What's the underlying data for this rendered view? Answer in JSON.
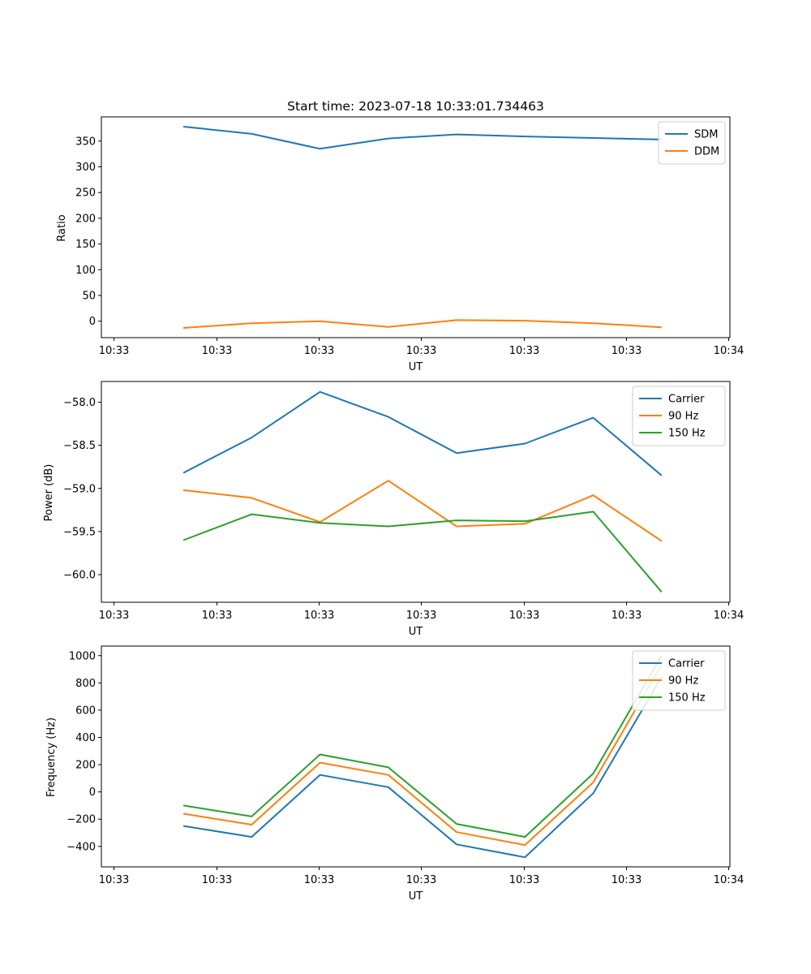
{
  "chart_data": [
    {
      "type": "line",
      "title": "Start time: 2023-07-18 10:33:01.734463",
      "xlabel": "UT",
      "ylabel": "Ratio",
      "x_tick_labels": [
        "10:33",
        "10:33",
        "10:33",
        "10:33",
        "10:33",
        "10:33",
        "10:34"
      ],
      "y_ticks": [
        0,
        50,
        100,
        150,
        200,
        250,
        300,
        350
      ],
      "ylim": [
        -32,
        397
      ],
      "x": [
        1,
        2,
        3,
        4,
        5,
        6,
        7,
        8
      ],
      "xlim": [
        -0.2,
        9.0
      ],
      "legend_position": "upper-right",
      "series": [
        {
          "name": "SDM",
          "color": "#1f77b4",
          "values": [
            378,
            364,
            335,
            355,
            363,
            359,
            356,
            353
          ]
        },
        {
          "name": "DDM",
          "color": "#ff7f0e",
          "values": [
            -13,
            -4,
            0,
            -11,
            2,
            1,
            -4,
            -12
          ]
        }
      ]
    },
    {
      "type": "line",
      "title": "",
      "xlabel": "UT",
      "ylabel": "Power (dB)",
      "x_tick_labels": [
        "10:33",
        "10:33",
        "10:33",
        "10:33",
        "10:33",
        "10:33",
        "10:34"
      ],
      "y_ticks": [
        -58.0,
        -58.5,
        -59.0,
        -59.5,
        -60.0
      ],
      "y_tick_labels": [
        "−58.0",
        "−58.5",
        "−59.0",
        "−59.5",
        "−60.0"
      ],
      "ylim": [
        -60.32,
        -57.76
      ],
      "x": [
        1,
        2,
        3,
        4,
        5,
        6,
        7,
        8
      ],
      "xlim": [
        -0.2,
        9.0
      ],
      "legend_position": "upper-right",
      "series": [
        {
          "name": "Carrier",
          "color": "#1f77b4",
          "values": [
            -58.82,
            -58.41,
            -57.88,
            -58.17,
            -58.59,
            -58.48,
            -58.18,
            -58.85
          ]
        },
        {
          "name": "90 Hz",
          "color": "#ff7f0e",
          "values": [
            -59.02,
            -59.11,
            -59.39,
            -58.91,
            -59.44,
            -59.41,
            -59.08,
            -59.61
          ]
        },
        {
          "name": "150 Hz",
          "color": "#2ca02c",
          "values": [
            -59.6,
            -59.3,
            -59.4,
            -59.44,
            -59.37,
            -59.38,
            -59.27,
            -60.2
          ]
        }
      ]
    },
    {
      "type": "line",
      "title": "",
      "xlabel": "UT",
      "ylabel": "Frequency (Hz)",
      "x_tick_labels": [
        "10:33",
        "10:33",
        "10:33",
        "10:33",
        "10:33",
        "10:33",
        "10:34"
      ],
      "y_ticks": [
        -400,
        -200,
        0,
        200,
        400,
        600,
        800,
        1000
      ],
      "y_tick_labels": [
        "−400",
        "−200",
        "0",
        "200",
        "400",
        "600",
        "800",
        "1000"
      ],
      "ylim": [
        -550,
        1070
      ],
      "x": [
        1,
        2,
        3,
        4,
        5,
        6,
        7,
        8
      ],
      "xlim": [
        -0.2,
        9.0
      ],
      "legend_position": "upper-right",
      "series": [
        {
          "name": "Carrier",
          "color": "#1f77b4",
          "values": [
            -250,
            -330,
            125,
            35,
            -385,
            -480,
            -10,
            845
          ]
        },
        {
          "name": "90 Hz",
          "color": "#ff7f0e",
          "values": [
            -160,
            -240,
            215,
            125,
            -295,
            -390,
            70,
            935
          ]
        },
        {
          "name": "150 Hz",
          "color": "#2ca02c",
          "values": [
            -100,
            -180,
            275,
            180,
            -235,
            -330,
            135,
            1000
          ]
        }
      ]
    }
  ]
}
